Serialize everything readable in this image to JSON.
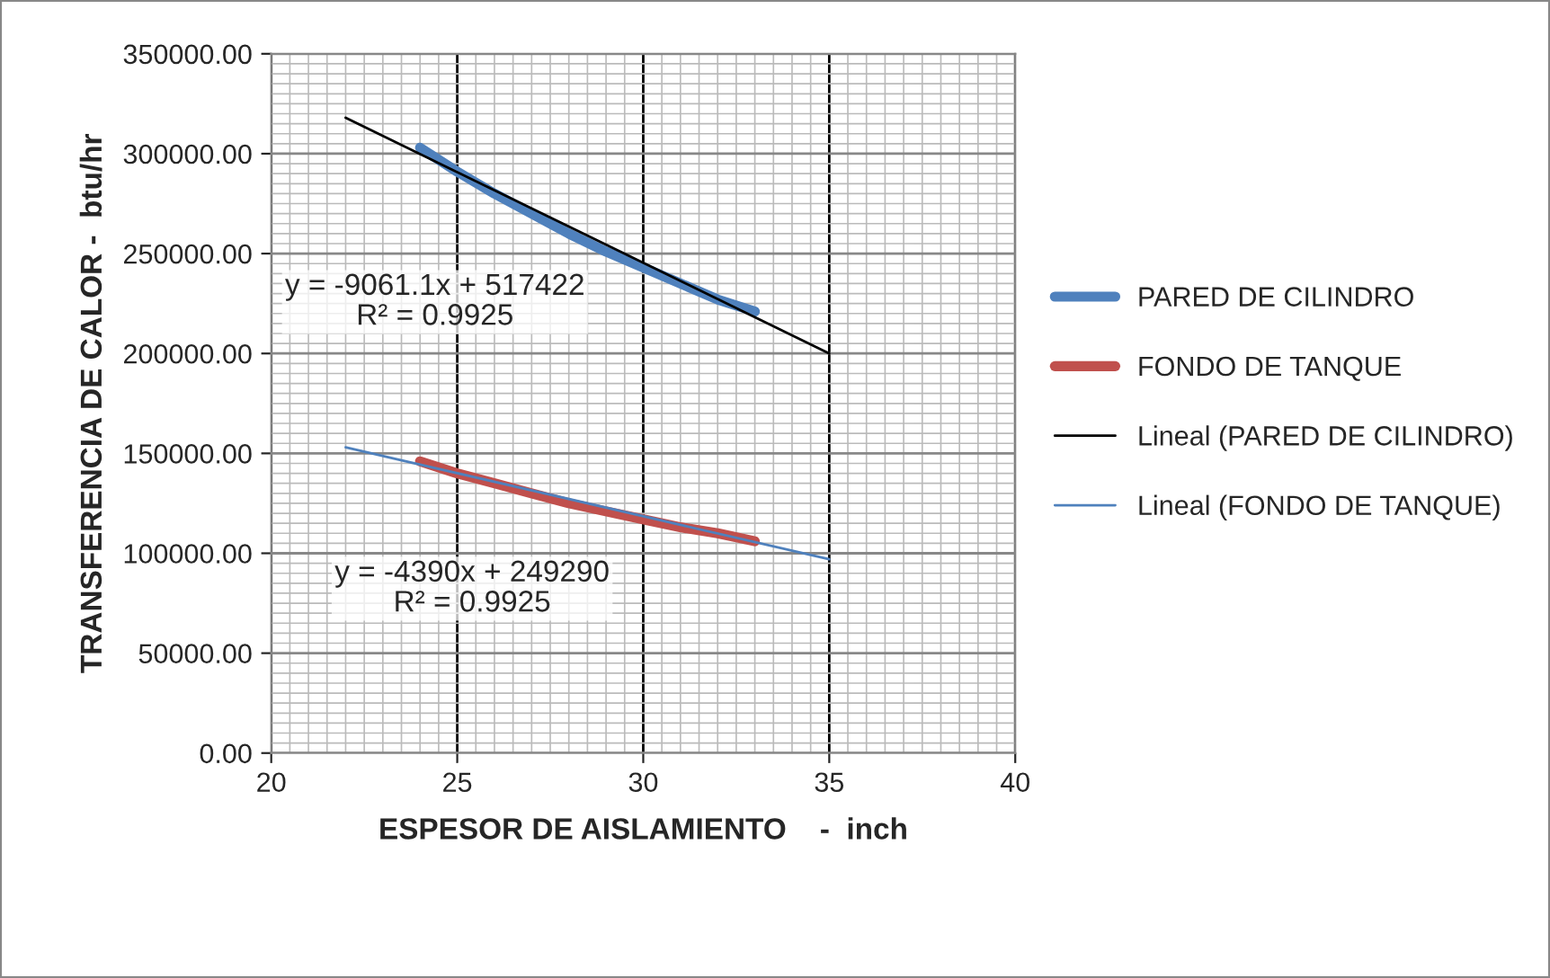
{
  "chart_data": {
    "type": "line",
    "xlabel": "ESPESOR DE AISLAMIENTO    -  inch",
    "ylabel": "TRANSFERENCIA DE CALOR -  btu/hr",
    "xlim": [
      20,
      40
    ],
    "xticks": [
      20,
      25,
      30,
      35,
      40
    ],
    "ylim": [
      0,
      350000
    ],
    "yticks": [
      {
        "value": 0,
        "label": "0.00"
      },
      {
        "value": 50000,
        "label": "50000.00"
      },
      {
        "value": 100000,
        "label": "100000.00"
      },
      {
        "value": 150000,
        "label": "150000.00"
      },
      {
        "value": 200000,
        "label": "200000.00"
      },
      {
        "value": 250000,
        "label": "250000.00"
      },
      {
        "value": 300000,
        "label": "300000.00"
      },
      {
        "value": 350000,
        "label": "350000.00"
      }
    ],
    "grid": true,
    "legend": "right",
    "marker": "none",
    "series": [
      {
        "name": "PARED DE CILINDRO",
        "color": "#4f81bd",
        "x": [
          24,
          25,
          26,
          27,
          28,
          29,
          30,
          31,
          32,
          33
        ],
        "values": [
          303000,
          291000,
          280000,
          270000,
          260000,
          251000,
          243000,
          235000,
          227000,
          221000
        ]
      },
      {
        "name": "FONDO DE TANQUE",
        "color": "#c0504d",
        "x": [
          24,
          25,
          26,
          27,
          28,
          29,
          30,
          31,
          32,
          33
        ],
        "values": [
          146000,
          140000,
          135000,
          130000,
          125000,
          121000,
          117000,
          113000,
          110000,
          106000
        ]
      },
      {
        "name": "Lineal (PARED DE CILINDRO)",
        "color": "#000000",
        "x": [
          22,
          35
        ],
        "values": [
          318000,
          200000
        ]
      },
      {
        "name": "Lineal (FONDO DE TANQUE)",
        "color": "#4f81bd",
        "x": [
          22,
          35
        ],
        "values": [
          153000,
          97000
        ]
      }
    ],
    "annotations": [
      "y = -9061.1x + 517422\nR² = 0.9925",
      "y = -4390x + 249290\nR² = 0.9925"
    ]
  }
}
